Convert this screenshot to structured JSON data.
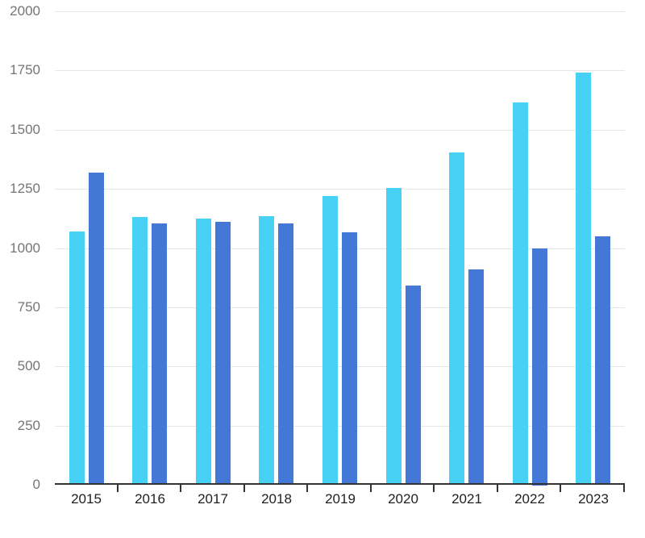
{
  "chart_data": {
    "type": "bar",
    "title": "",
    "xlabel": "",
    "ylabel": "",
    "categories": [
      "2015",
      "2016",
      "2017",
      "2018",
      "2019",
      "2020",
      "2021",
      "2022",
      "2023"
    ],
    "series": [
      {
        "name": "light-blue-series",
        "color": "#46d1f5",
        "values": [
          1070,
          1130,
          1125,
          1135,
          1220,
          1255,
          1405,
          1615,
          1740
        ]
      },
      {
        "name": "dark-blue-series",
        "color": "#4478d6",
        "values": [
          1320,
          1105,
          1110,
          1105,
          1065,
          840,
          910,
          1000,
          1050
        ]
      }
    ],
    "ylim": [
      0,
      2000
    ],
    "yticks": [
      0,
      250,
      500,
      750,
      1000,
      1250,
      1500,
      1750,
      2000
    ],
    "grid": true,
    "legend_position": "none"
  },
  "colors": {
    "background": "#ffffff",
    "gridline": "#e6e6e6",
    "axis_line": "#333333",
    "y_tick_label": "#757575",
    "x_tick_label": "#1f1f1f"
  }
}
